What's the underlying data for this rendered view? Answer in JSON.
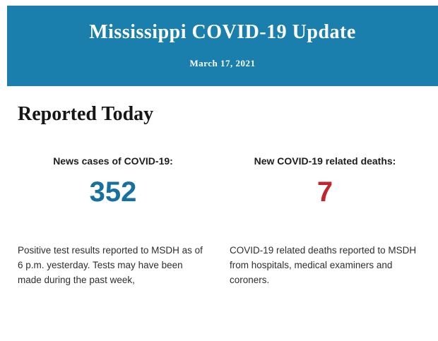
{
  "banner": {
    "title": "Mississippi COVID-19 Update",
    "date": "March 17, 2021",
    "background_color": "#1a7fad"
  },
  "section": {
    "heading": "Reported Today"
  },
  "stats": [
    {
      "label": "News cases of COVID-19:",
      "value": "352",
      "value_color": "#17719f",
      "description": "Positive test results reported to MSDH as of 6 p.m. yesterday. Tests may have been made during the past week,"
    },
    {
      "label": "New COVID-19 related deaths:",
      "value": "7",
      "value_color": "#c0262c",
      "description": "COVID-19 related deaths reported to MSDH from hospitals, medical examiners and coroners."
    }
  ]
}
